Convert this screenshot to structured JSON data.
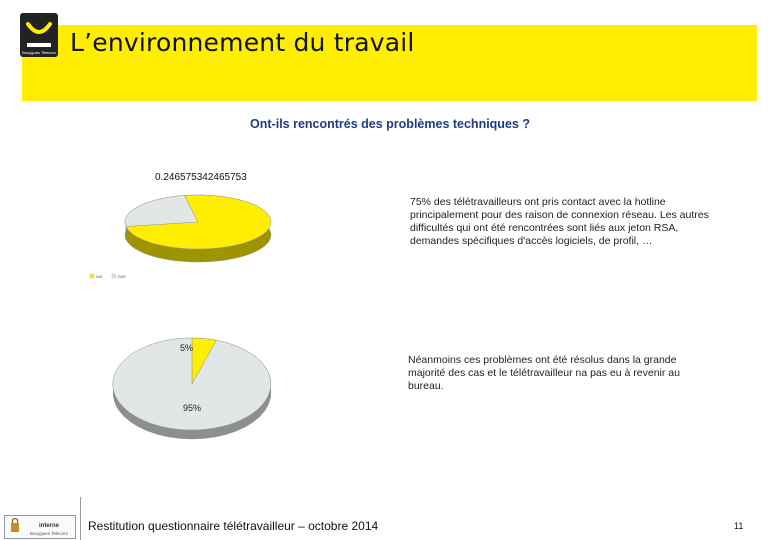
{
  "header": {
    "title": "L’environnement du travail",
    "logo_text": "Bouygues Telecom",
    "accent_color": "#ffee00"
  },
  "chart_title": "Ont-ils rencontrés des problèmes techniques ?",
  "comments": {
    "first": "75% des télétravailleurs ont pris contact avec la hotline principalement pour des raison de connexion réseau. Les autres difficultés qui ont été rencontrées sont liés aux jeton RSA, demandes spécifiques d'accès logiciels, de profil, …",
    "second": "Néanmoins ces problèmes ont été résolus dans la grande majorité des cas et le télétravailleur na pas eu à revenir au bureau."
  },
  "chart_data": [
    {
      "type": "pie",
      "title": "",
      "data_label": "0.246575342465753",
      "slices": [
        {
          "label": "oui",
          "value": 0.753424657534247,
          "color": "#ffee00"
        },
        {
          "label": "non",
          "value": 0.246575342465753,
          "color": "#e2e6e6"
        }
      ],
      "legend": [
        "oui",
        "non"
      ],
      "legend_position": "bottom-left"
    },
    {
      "type": "pie",
      "title": "",
      "slices": [
        {
          "label": "5%",
          "value": 5,
          "color": "#ffee00"
        },
        {
          "label": "95%",
          "value": 95,
          "color": "#e2e6e6"
        }
      ]
    }
  ],
  "footer": {
    "badge_line1": "interne",
    "badge_line2": "Bouygues Telecom",
    "title": "Restitution questionnaire télétravailleur – octobre 2014",
    "page": "11"
  }
}
